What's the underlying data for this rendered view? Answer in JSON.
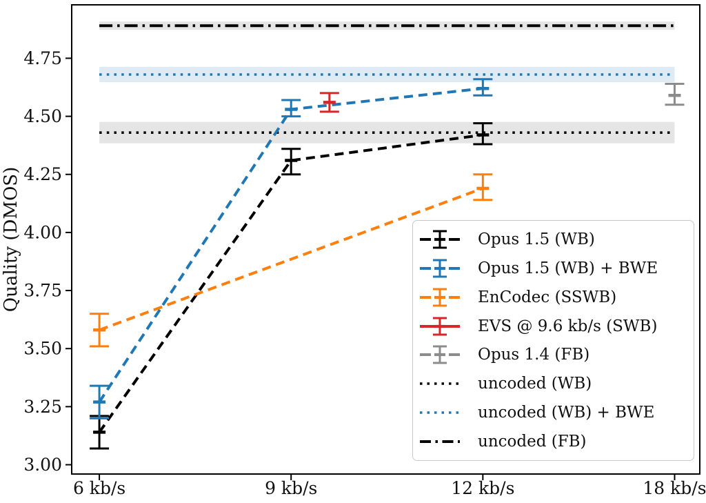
{
  "chart_data": {
    "type": "line",
    "title": "",
    "xlabel": "",
    "ylabel": "Quality (DMOS)",
    "grid": false,
    "legend_position": "lower-right-inside",
    "x_tick_labels": [
      "6 kb/s",
      "9 kb/s",
      "12 kb/s",
      "18 kb/s"
    ],
    "x_tick_kbps": [
      6,
      9,
      12,
      18
    ],
    "ylim": [
      2.96,
      4.98
    ],
    "yticks": [
      3.0,
      3.25,
      3.5,
      3.75,
      4.0,
      4.25,
      4.5,
      4.75
    ],
    "ytick_labels": [
      "3.00",
      "3.25",
      "3.50",
      "3.75",
      "4.00",
      "4.25",
      "4.50",
      "4.75"
    ],
    "series": [
      {
        "name": "Opus 1.5 (WB)",
        "color": "#000000",
        "line_style": "dashed",
        "points": [
          {
            "kbps": 6,
            "y": 3.14,
            "y_lo": 3.07,
            "y_hi": 3.21
          },
          {
            "kbps": 9,
            "y": 4.31,
            "y_lo": 4.25,
            "y_hi": 4.36
          },
          {
            "kbps": 12,
            "y": 4.42,
            "y_lo": 4.38,
            "y_hi": 4.47
          }
        ]
      },
      {
        "name": "Opus 1.5 (WB) + BWE",
        "color": "#1f77b4",
        "line_style": "dashed",
        "points": [
          {
            "kbps": 6,
            "y": 3.27,
            "y_lo": 3.2,
            "y_hi": 3.34
          },
          {
            "kbps": 9,
            "y": 4.53,
            "y_lo": 4.5,
            "y_hi": 4.57
          },
          {
            "kbps": 12,
            "y": 4.62,
            "y_lo": 4.59,
            "y_hi": 4.66
          }
        ]
      },
      {
        "name": "EnCodec (SSWB)",
        "color": "#ff7f0e",
        "line_style": "dashed",
        "points": [
          {
            "kbps": 6,
            "y": 3.58,
            "y_lo": 3.51,
            "y_hi": 3.65
          },
          {
            "kbps": 12,
            "y": 4.19,
            "y_lo": 4.14,
            "y_hi": 4.25
          }
        ]
      },
      {
        "name": "EVS @ 9.6 kb/s (SWB)",
        "color": "#d62728",
        "line_style": "solid",
        "points": [
          {
            "kbps": 9.6,
            "y": 4.56,
            "y_lo": 4.52,
            "y_hi": 4.6
          }
        ]
      },
      {
        "name": "Opus 1.4 (FB)",
        "color": "#8c8c8c",
        "line_style": "dashed",
        "points": [
          {
            "kbps": 18,
            "y": 4.59,
            "y_lo": 4.55,
            "y_hi": 4.64
          }
        ]
      }
    ],
    "reference_lines": [
      {
        "name": "uncoded (WB)",
        "color": "#000000",
        "line_style": "dotted",
        "y": 4.43,
        "band_half_width": 0.046,
        "x_from_kbps": 6,
        "x_to_kbps": 18
      },
      {
        "name": "uncoded (WB) + BWE",
        "color": "#1f77b4",
        "line_style": "dotted",
        "y": 4.68,
        "band_half_width": 0.033,
        "x_from_kbps": 6,
        "x_to_kbps": 18
      },
      {
        "name": "uncoded (FB)",
        "color": "#000000",
        "line_style": "dashdot",
        "y": 4.89,
        "band_half_width": 0.018,
        "x_from_kbps": 6,
        "x_to_kbps": 18
      }
    ]
  }
}
